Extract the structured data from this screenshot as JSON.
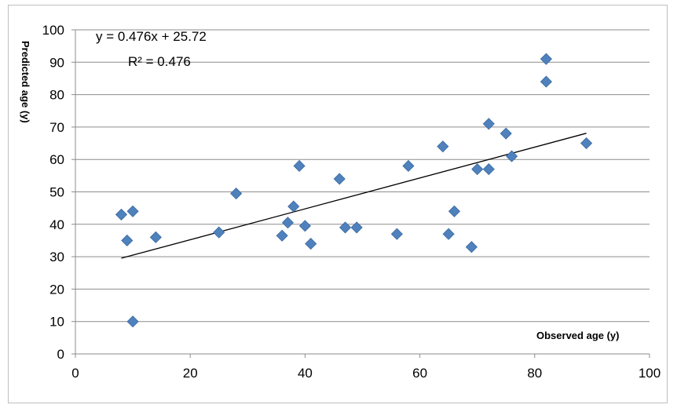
{
  "chart_data": {
    "type": "scatter",
    "xlabel": "Observed age (y)",
    "ylabel": "Predicted age (y)",
    "xlim": [
      0,
      100
    ],
    "ylim": [
      0,
      100
    ],
    "x_ticks": [
      "0",
      "20",
      "40",
      "60",
      "80",
      "100"
    ],
    "y_ticks": [
      "0",
      "10",
      "20",
      "30",
      "40",
      "50",
      "60",
      "70",
      "80",
      "90",
      "100"
    ],
    "grid": "horizontal",
    "marker_color": "#4f81bd",
    "trendline": {
      "equation": "y = 0.476x + 25.72",
      "r_squared": "R² = 0.476",
      "slope": 0.476,
      "intercept": 25.72,
      "x_range": [
        8,
        89
      ]
    },
    "points": [
      {
        "x": 8,
        "y": 43
      },
      {
        "x": 9,
        "y": 35
      },
      {
        "x": 10,
        "y": 44
      },
      {
        "x": 10,
        "y": 10
      },
      {
        "x": 14,
        "y": 36
      },
      {
        "x": 25,
        "y": 37.5
      },
      {
        "x": 28,
        "y": 49.5
      },
      {
        "x": 36,
        "y": 36.5
      },
      {
        "x": 37,
        "y": 40.5
      },
      {
        "x": 38,
        "y": 45.5
      },
      {
        "x": 39,
        "y": 58
      },
      {
        "x": 40,
        "y": 39.5
      },
      {
        "x": 41,
        "y": 34
      },
      {
        "x": 46,
        "y": 54
      },
      {
        "x": 47,
        "y": 39
      },
      {
        "x": 49,
        "y": 39
      },
      {
        "x": 56,
        "y": 37
      },
      {
        "x": 58,
        "y": 58
      },
      {
        "x": 64,
        "y": 64
      },
      {
        "x": 65,
        "y": 37
      },
      {
        "x": 66,
        "y": 44
      },
      {
        "x": 69,
        "y": 33
      },
      {
        "x": 70,
        "y": 57
      },
      {
        "x": 72,
        "y": 71
      },
      {
        "x": 72,
        "y": 57
      },
      {
        "x": 75,
        "y": 68
      },
      {
        "x": 76,
        "y": 61
      },
      {
        "x": 82,
        "y": 91
      },
      {
        "x": 82,
        "y": 84
      },
      {
        "x": 89,
        "y": 65
      }
    ]
  }
}
